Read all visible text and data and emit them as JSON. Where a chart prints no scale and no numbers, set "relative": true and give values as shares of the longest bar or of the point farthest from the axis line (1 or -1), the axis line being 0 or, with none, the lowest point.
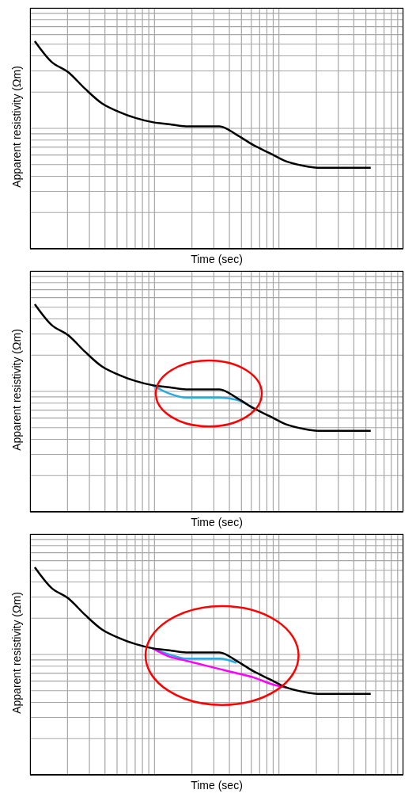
{
  "chart_data": [
    {
      "type": "line",
      "xlabel": "Time (sec)",
      "ylabel": "Apparent resistivity (Ωm)",
      "relative": true,
      "grid": true,
      "marker": "none",
      "line_style": "solid",
      "categories": [
        null,
        null,
        null,
        null,
        null,
        null,
        null,
        null,
        null,
        null,
        null,
        null,
        null,
        null,
        null,
        null,
        null,
        null,
        null,
        null,
        null,
        null
      ],
      "series": [
        {
          "color": "#000000",
          "values": [
            1.0,
            0.9,
            0.85,
            0.77,
            0.7,
            0.66,
            0.63,
            0.61,
            0.6,
            0.59,
            0.59,
            0.59,
            0.55,
            0.5,
            0.46,
            0.42,
            0.4,
            0.39,
            0.39,
            0.39,
            0.39,
            null
          ]
        }
      ]
    },
    {
      "type": "line",
      "xlabel": "Time (sec)",
      "ylabel": "Apparent resistivity (Ωm)",
      "relative": true,
      "grid": true,
      "marker": "none",
      "line_style": "solid",
      "categories": [
        null,
        null,
        null,
        null,
        null,
        null,
        null,
        null,
        null,
        null,
        null,
        null,
        null,
        null,
        null,
        null,
        null,
        null,
        null,
        null,
        null,
        null
      ],
      "series": [
        {
          "color": "#29abe2",
          "values": [
            null,
            null,
            null,
            null,
            null,
            null,
            null,
            0.61,
            0.57,
            0.55,
            0.55,
            0.55,
            0.54,
            0.5,
            null,
            null,
            null,
            null,
            null,
            null,
            null,
            null
          ]
        },
        {
          "color": "#000000",
          "values": [
            1.0,
            0.9,
            0.85,
            0.77,
            0.7,
            0.66,
            0.63,
            0.61,
            0.6,
            0.59,
            0.59,
            0.59,
            0.55,
            0.5,
            0.46,
            0.42,
            0.4,
            0.39,
            0.39,
            0.39,
            0.39,
            null
          ]
        }
      ]
    },
    {
      "type": "line",
      "xlabel": "Time (sec)",
      "ylabel": "Apparent resistivity (Ωm)",
      "relative": true,
      "grid": true,
      "marker": "none",
      "line_style": "solid",
      "categories": [
        null,
        null,
        null,
        null,
        null,
        null,
        null,
        null,
        null,
        null,
        null,
        null,
        null,
        null,
        null,
        null,
        null,
        null,
        null,
        null,
        null,
        null
      ],
      "series": [
        {
          "color": "#29abe2",
          "values": [
            null,
            null,
            null,
            null,
            null,
            null,
            null,
            0.61,
            0.58,
            0.56,
            0.56,
            0.56,
            0.54,
            null,
            null,
            null,
            null,
            null,
            null,
            null,
            null,
            null
          ]
        },
        {
          "color": "#ff00ff",
          "values": [
            null,
            null,
            null,
            null,
            null,
            null,
            null,
            0.61,
            0.57,
            0.55,
            0.53,
            0.51,
            0.49,
            0.47,
            0.44,
            0.42,
            null,
            null,
            null,
            null,
            null,
            null
          ]
        },
        {
          "color": "#000000",
          "values": [
            1.0,
            0.9,
            0.85,
            0.77,
            0.7,
            0.66,
            0.63,
            0.61,
            0.6,
            0.59,
            0.59,
            0.59,
            0.55,
            0.5,
            0.46,
            0.42,
            0.4,
            0.39,
            0.39,
            0.39,
            0.39,
            null
          ]
        }
      ]
    }
  ]
}
